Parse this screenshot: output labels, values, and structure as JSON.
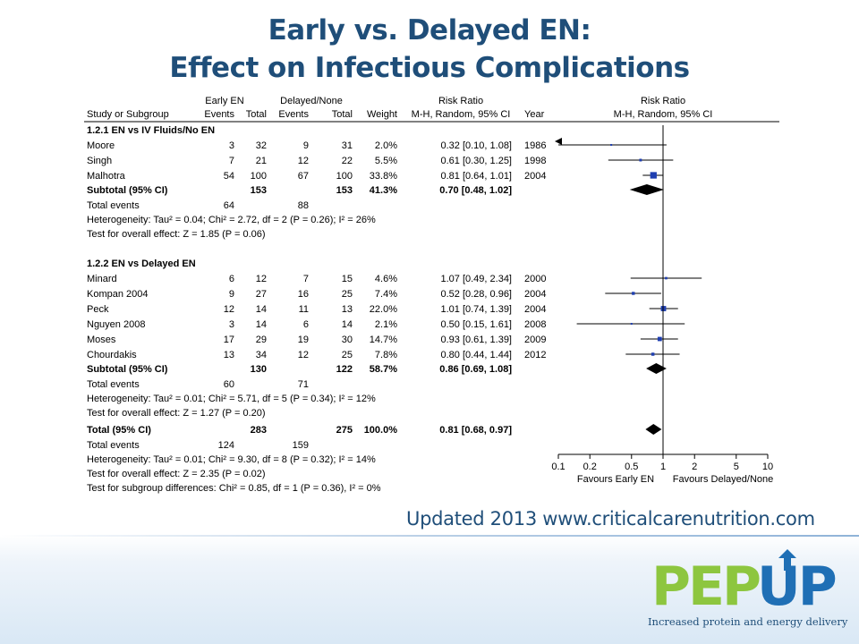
{
  "title_line1": "Early vs. Delayed EN:",
  "title_line2": "Effect on Infectious Complications",
  "footer_text": "Updated 2013 www.criticalcarenutrition.com",
  "logo": {
    "left": "PEP",
    "right": "UP",
    "tagline": "Increased protein and energy delivery",
    "colors": {
      "pep": "#8dc63f",
      "up": "#1f6fb5"
    }
  },
  "headers": {
    "early": "Early EN",
    "delayed": "Delayed/None",
    "rr": "Risk Ratio",
    "rr_plot": "Risk Ratio",
    "study": "Study or Subgroup",
    "events": "Events",
    "total": "Total",
    "weight": "Weight",
    "method": "M-H, Random, 95% CI",
    "year": "Year",
    "method_plot": "M-H, Random, 95% CI"
  },
  "chart_data": {
    "type": "forest",
    "x_scale": "log",
    "xlim": [
      0.1,
      10
    ],
    "ticks": [
      0.1,
      0.2,
      0.5,
      1,
      2,
      5,
      10
    ],
    "tick_labels": [
      "0.1",
      "0.2",
      "0.5",
      "1",
      "2",
      "5",
      "10"
    ],
    "favours_left": "Favours Early EN",
    "favours_right": "Favours Delayed/None",
    "groups": [
      {
        "label": "1.2.1 EN vs IV Fluids/No EN",
        "studies": [
          {
            "name": "Moore",
            "e1": "3",
            "t1": "32",
            "e2": "9",
            "t2": "31",
            "weight": "2.0%",
            "rr_text": "0.32 [0.10, 1.08]",
            "year": "1986",
            "rr": 0.32,
            "lo": 0.1,
            "hi": 1.08,
            "w": 2.0
          },
          {
            "name": "Singh",
            "e1": "7",
            "t1": "21",
            "e2": "12",
            "t2": "22",
            "weight": "5.5%",
            "rr_text": "0.61 [0.30, 1.25]",
            "year": "1998",
            "rr": 0.61,
            "lo": 0.3,
            "hi": 1.25,
            "w": 5.5
          },
          {
            "name": "Malhotra",
            "e1": "54",
            "t1": "100",
            "e2": "67",
            "t2": "100",
            "weight": "33.8%",
            "rr_text": "0.81 [0.64, 1.01]",
            "year": "2004",
            "rr": 0.81,
            "lo": 0.64,
            "hi": 1.01,
            "w": 33.8
          }
        ],
        "subtotal": {
          "label": "Subtotal (95% CI)",
          "t1": "153",
          "t2": "153",
          "weight": "41.3%",
          "rr_text": "0.70 [0.48, 1.02]",
          "rr": 0.7,
          "lo": 0.48,
          "hi": 1.02
        },
        "total_events": {
          "label": "Total events",
          "e1": "64",
          "e2": "88"
        },
        "heterogeneity": "Heterogeneity: Tau² = 0.04; Chi² = 2.72, df = 2 (P = 0.26); I² = 26%",
        "overall": "Test for overall effect: Z = 1.85 (P = 0.06)"
      },
      {
        "label": "1.2.2 EN vs Delayed EN",
        "studies": [
          {
            "name": "Minard",
            "e1": "6",
            "t1": "12",
            "e2": "7",
            "t2": "15",
            "weight": "4.6%",
            "rr_text": "1.07 [0.49, 2.34]",
            "year": "2000",
            "rr": 1.07,
            "lo": 0.49,
            "hi": 2.34,
            "w": 4.6
          },
          {
            "name": "Kompan 2004",
            "e1": "9",
            "t1": "27",
            "e2": "16",
            "t2": "25",
            "weight": "7.4%",
            "rr_text": "0.52 [0.28, 0.96]",
            "year": "2004",
            "rr": 0.52,
            "lo": 0.28,
            "hi": 0.96,
            "w": 7.4
          },
          {
            "name": "Peck",
            "e1": "12",
            "t1": "14",
            "e2": "11",
            "t2": "13",
            "weight": "22.0%",
            "rr_text": "1.01 [0.74, 1.39]",
            "year": "2004",
            "rr": 1.01,
            "lo": 0.74,
            "hi": 1.39,
            "w": 22.0
          },
          {
            "name": "Nguyen 2008",
            "e1": "3",
            "t1": "14",
            "e2": "6",
            "t2": "14",
            "weight": "2.1%",
            "rr_text": "0.50 [0.15, 1.61]",
            "year": "2008",
            "rr": 0.5,
            "lo": 0.15,
            "hi": 1.61,
            "w": 2.1
          },
          {
            "name": "Moses",
            "e1": "17",
            "t1": "29",
            "e2": "19",
            "t2": "30",
            "weight": "14.7%",
            "rr_text": "0.93 [0.61, 1.39]",
            "year": "2009",
            "rr": 0.93,
            "lo": 0.61,
            "hi": 1.39,
            "w": 14.7
          },
          {
            "name": "Chourdakis",
            "e1": "13",
            "t1": "34",
            "e2": "12",
            "t2": "25",
            "weight": "7.8%",
            "rr_text": "0.80 [0.44, 1.44]",
            "year": "2012",
            "rr": 0.8,
            "lo": 0.44,
            "hi": 1.44,
            "w": 7.8
          }
        ],
        "subtotal": {
          "label": "Subtotal (95% CI)",
          "t1": "130",
          "t2": "122",
          "weight": "58.7%",
          "rr_text": "0.86 [0.69, 1.08]",
          "rr": 0.86,
          "lo": 0.69,
          "hi": 1.08
        },
        "total_events": {
          "label": "Total events",
          "e1": "60",
          "e2": "71"
        },
        "heterogeneity": "Heterogeneity: Tau² = 0.01; Chi² = 5.71, df = 5 (P = 0.34); I² = 12%",
        "overall": "Test for overall effect: Z = 1.27 (P = 0.20)"
      }
    ],
    "total": {
      "label": "Total (95% CI)",
      "t1": "283",
      "t2": "275",
      "weight": "100.0%",
      "rr_text": "0.81 [0.68, 0.97]",
      "rr": 0.81,
      "lo": 0.68,
      "hi": 0.97
    },
    "total_events": {
      "label": "Total events",
      "e1": "124",
      "e2": "159"
    },
    "heterogeneity": "Heterogeneity: Tau² = 0.01; Chi² = 9.30, df = 8 (P = 0.32); I² = 14%",
    "overall": "Test for overall effect: Z = 2.35 (P = 0.02)",
    "subgroup": "Test for subgroup differences: Chi² = 0.85, df = 1 (P = 0.36), I² = 0%"
  }
}
